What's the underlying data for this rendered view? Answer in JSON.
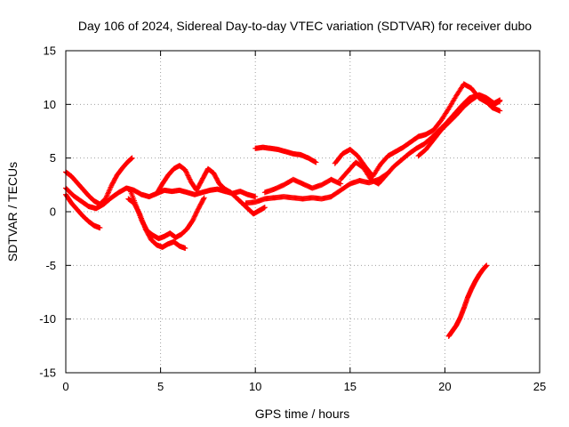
{
  "chart_data": {
    "type": "scatter",
    "title": "Day 106 of 2024, Sidereal Day-to-day VTEC variation (SDTVAR) for receiver dubo",
    "xlabel": "GPS time / hours",
    "ylabel": "SDTVAR / TECUs",
    "xlim": [
      0,
      25
    ],
    "ylim": [
      -15,
      15
    ],
    "xticks": [
      "0",
      "5",
      "10",
      "15",
      "20",
      "25"
    ],
    "yticks": [
      "15",
      "10",
      "5",
      "0",
      "-5",
      "-10",
      "-15"
    ],
    "grid": true,
    "marker": "plus",
    "color": "#ff0000",
    "series": [
      {
        "x": [
          0.0,
          0.3,
          0.6,
          0.9,
          1.2,
          1.5,
          1.8
        ],
        "y": [
          1.6,
          0.8,
          0.2,
          -0.4,
          -0.9,
          -1.3,
          -1.5
        ]
      },
      {
        "x": [
          0.0,
          0.3,
          0.6,
          0.9,
          1.2,
          1.5,
          1.8,
          2.1,
          2.4,
          2.7,
          3.0,
          3.3,
          3.5
        ],
        "y": [
          3.7,
          3.3,
          2.7,
          2.1,
          1.5,
          1.0,
          0.7,
          1.2,
          2.4,
          3.4,
          4.1,
          4.7,
          5.0
        ]
      },
      {
        "x": [
          0.0,
          0.4,
          0.8,
          1.2,
          1.6,
          2.0,
          2.4,
          2.8,
          3.2,
          3.6,
          4.0,
          4.4,
          4.8,
          5.2,
          5.6,
          6.0,
          6.4,
          6.8,
          7.2,
          7.6,
          8.0,
          8.4,
          8.8,
          9.2,
          9.6,
          10.0
        ],
        "y": [
          2.2,
          1.5,
          1.0,
          0.5,
          0.3,
          0.7,
          1.3,
          1.8,
          2.2,
          2.0,
          1.6,
          1.4,
          1.7,
          2.0,
          1.9,
          2.0,
          1.8,
          1.6,
          1.8,
          2.0,
          2.1,
          1.9,
          1.7,
          1.9,
          1.6,
          1.4
        ]
      },
      {
        "x": [
          3.3,
          3.6,
          3.9,
          4.2,
          4.5,
          4.8,
          5.1,
          5.4,
          5.7,
          6.0,
          6.3
        ],
        "y": [
          1.2,
          0.8,
          -0.2,
          -1.6,
          -2.6,
          -3.1,
          -3.3,
          -3.0,
          -2.8,
          -3.2,
          -3.4
        ]
      },
      {
        "x": [
          3.4,
          3.7,
          4.0,
          4.3,
          4.6,
          4.9,
          5.2,
          5.5,
          5.8,
          6.1,
          6.4,
          6.7,
          7.0,
          7.3
        ],
        "y": [
          2.0,
          0.6,
          -0.8,
          -1.8,
          -2.2,
          -2.5,
          -2.3,
          -2.0,
          -2.4,
          -2.1,
          -1.6,
          -0.8,
          0.3,
          1.3
        ]
      },
      {
        "x": [
          4.8,
          5.1,
          5.4,
          5.7,
          6.0,
          6.3,
          6.6,
          6.9,
          7.2,
          7.5,
          7.8,
          8.1,
          8.4,
          8.7,
          9.0,
          9.3,
          9.6,
          9.9,
          10.2,
          10.5
        ],
        "y": [
          1.7,
          2.6,
          3.4,
          4.0,
          4.3,
          3.9,
          2.8,
          2.0,
          3.0,
          4.0,
          3.6,
          2.6,
          2.1,
          1.8,
          1.3,
          0.8,
          0.3,
          -0.2,
          0.1,
          0.4
        ]
      },
      {
        "x": [
          10.0,
          10.4,
          10.8,
          11.2,
          11.6,
          12.0,
          12.4,
          12.8,
          13.2
        ],
        "y": [
          5.9,
          6.0,
          5.9,
          5.8,
          5.6,
          5.4,
          5.3,
          5.0,
          4.6
        ]
      },
      {
        "x": [
          9.5,
          10.0,
          10.5,
          11.0,
          11.5,
          12.0,
          12.5,
          13.0,
          13.5,
          14.0,
          14.5,
          15.0,
          15.5,
          16.0,
          16.5,
          17.0
        ],
        "y": [
          0.8,
          0.9,
          1.2,
          1.3,
          1.4,
          1.3,
          1.2,
          1.3,
          1.2,
          1.4,
          2.0,
          2.6,
          2.9,
          2.7,
          3.0,
          3.6
        ]
      },
      {
        "x": [
          10.5,
          11.0,
          11.5,
          12.0,
          12.5,
          13.0,
          13.5,
          14.0,
          14.5
        ],
        "y": [
          1.8,
          2.1,
          2.5,
          3.0,
          2.6,
          2.2,
          2.5,
          3.0,
          2.6
        ]
      },
      {
        "x": [
          14.2,
          14.6,
          15.0,
          15.4,
          15.8,
          16.2,
          16.6,
          17.0,
          17.4,
          17.8,
          18.2,
          18.6,
          19.0,
          19.4,
          19.8,
          20.2,
          20.6,
          21.0,
          21.4,
          21.8,
          22.2,
          22.6,
          22.9
        ],
        "y": [
          4.5,
          5.4,
          5.8,
          5.2,
          4.2,
          3.3,
          4.4,
          5.2,
          5.6,
          6.0,
          6.5,
          7.0,
          7.2,
          7.6,
          8.5,
          9.6,
          10.8,
          11.9,
          11.5,
          10.6,
          10.2,
          10.0,
          10.3
        ]
      },
      {
        "x": [
          14.5,
          14.9,
          15.3,
          15.7,
          16.1,
          16.5,
          16.9,
          17.3,
          17.7,
          18.1,
          18.5,
          18.9,
          19.3,
          19.7,
          20.1,
          20.5,
          20.9,
          21.3,
          21.7,
          22.1,
          22.5,
          22.9
        ],
        "y": [
          3.0,
          3.8,
          4.6,
          4.1,
          3.0,
          2.6,
          3.4,
          4.2,
          4.8,
          5.4,
          5.9,
          6.3,
          6.9,
          7.6,
          8.3,
          9.1,
          9.9,
          10.6,
          10.8,
          10.4,
          9.7,
          9.4
        ]
      },
      {
        "x": [
          18.6,
          19.0,
          19.4,
          19.8,
          20.2,
          20.6,
          21.0,
          21.4,
          21.8,
          22.2,
          22.6,
          22.9
        ],
        "y": [
          5.2,
          5.8,
          6.7,
          7.6,
          8.3,
          9.0,
          9.8,
          10.4,
          10.9,
          10.6,
          10.1,
          10.4
        ]
      },
      {
        "x": [
          20.2,
          20.4,
          20.6,
          20.8,
          21.0,
          21.2,
          21.4,
          21.6,
          21.8,
          22.0,
          22.2
        ],
        "y": [
          -11.6,
          -11.1,
          -10.6,
          -9.9,
          -9.0,
          -8.0,
          -7.2,
          -6.5,
          -5.9,
          -5.4,
          -5.0
        ]
      }
    ]
  }
}
